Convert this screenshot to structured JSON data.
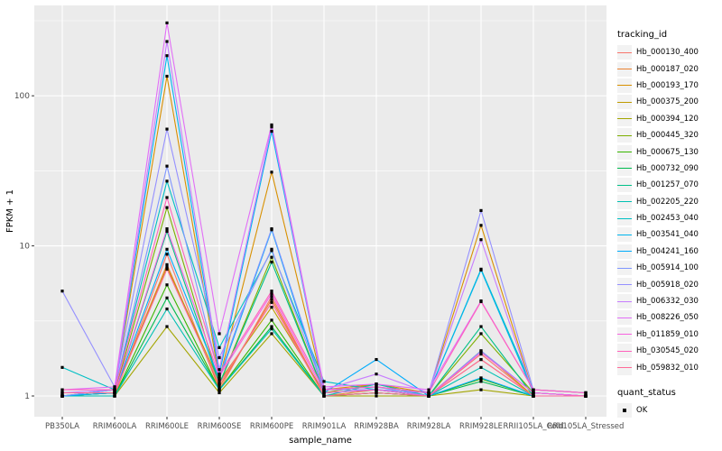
{
  "axes": {
    "x_title": "sample_name",
    "y_title": "FPKM + 1"
  },
  "legend": {
    "tracking_title": "tracking_id",
    "quant_title": "quant_status",
    "quant_ok": "OK"
  },
  "chart_data": {
    "type": "line",
    "xlabel": "sample_name",
    "ylabel": "FPKM + 1",
    "y_scale": "log10",
    "ylim": [
      0.73,
      406
    ],
    "y_ticks": [
      1,
      10,
      100
    ],
    "y_minor": [
      3.162,
      31.62,
      316.2
    ],
    "grid": "on",
    "legend_position": "right",
    "point_marker": "small black square (quant_status OK)",
    "colors": {
      "panel_bg": "#EBEBEB",
      "gridline": "#FFFFFF",
      "tick_text": "#4D4D4D",
      "tick_mark": "#333333",
      "point": "#000000",
      "legend_key_bg": "#F2F2F2"
    },
    "categories": [
      "PB350LA",
      "RRIM600LA",
      "RRIM600LE",
      "RRIM600SE",
      "RRIM600PE",
      "RRIM901LA",
      "RRIM928BA",
      "RRIM928LA",
      "RRIM928LE",
      "RRII105LA_Cold",
      "RRII105LA_Stressed"
    ],
    "series": [
      {
        "name": "Hb_000130_400",
        "color": "#F8766D",
        "values": [
          1.0,
          1.0,
          8.8,
          1.1,
          4.6,
          1.0,
          1.05,
          1.0,
          1.9,
          1.0,
          1.0
        ]
      },
      {
        "name": "Hb_000187_020",
        "color": "#EA8331",
        "values": [
          1.0,
          1.05,
          7.5,
          1.15,
          4.4,
          1.0,
          1.1,
          1.0,
          1.75,
          1.0,
          1.0
        ]
      },
      {
        "name": "Hb_000193_170",
        "color": "#D89000",
        "values": [
          1.0,
          1.1,
          135,
          1.3,
          31,
          1.1,
          1.2,
          1.05,
          13.7,
          1.05,
          1.0
        ]
      },
      {
        "name": "Hb_000375_200",
        "color": "#C09B00",
        "values": [
          1.0,
          1.05,
          7.2,
          1.25,
          3.9,
          1.05,
          1.2,
          1.0,
          2.0,
          1.0,
          1.0
        ]
      },
      {
        "name": "Hb_000394_120",
        "color": "#A3A500",
        "values": [
          1.0,
          1.0,
          2.9,
          1.05,
          2.6,
          1.0,
          1.0,
          1.0,
          1.1,
          1.0,
          1.0
        ]
      },
      {
        "name": "Hb_000445_320",
        "color": "#7CAE00",
        "values": [
          1.0,
          1.05,
          18,
          1.2,
          8.4,
          1.05,
          1.1,
          1.0,
          2.6,
          1.05,
          1.0
        ]
      },
      {
        "name": "Hb_000675_130",
        "color": "#39B600",
        "values": [
          1.0,
          1.0,
          5.5,
          1.1,
          3.2,
          1.0,
          1.05,
          1.0,
          1.3,
          1.0,
          1.0
        ]
      },
      {
        "name": "Hb_000732_090",
        "color": "#00BB4E",
        "values": [
          1.0,
          1.0,
          4.5,
          1.1,
          2.9,
          1.0,
          1.05,
          1.0,
          1.25,
          1.0,
          1.0
        ]
      },
      {
        "name": "Hb_001257_070",
        "color": "#00C087",
        "values": [
          1.0,
          1.05,
          12.5,
          1.2,
          7.8,
          1.05,
          1.1,
          1.0,
          2.9,
          1.0,
          1.0
        ]
      },
      {
        "name": "Hb_002205_220",
        "color": "#00C0B3",
        "values": [
          1.0,
          1.0,
          3.8,
          1.1,
          2.8,
          1.0,
          1.2,
          1.0,
          1.55,
          1.0,
          1.0
        ]
      },
      {
        "name": "Hb_002453_040",
        "color": "#00BFC4",
        "values": [
          1.55,
          1.1,
          27,
          2.1,
          9.3,
          1.25,
          1.1,
          1.05,
          7.0,
          1.1,
          1.05
        ]
      },
      {
        "name": "Hb_003541_040",
        "color": "#00B5EE",
        "values": [
          1.0,
          1.1,
          185,
          1.4,
          58,
          1.1,
          1.15,
          1.05,
          6.9,
          1.05,
          1.0
        ]
      },
      {
        "name": "Hb_004241_160",
        "color": "#00ACFC",
        "values": [
          1.0,
          1.05,
          9.5,
          1.3,
          12.8,
          1.05,
          1.75,
          1.0,
          1.32,
          1.0,
          1.0
        ]
      },
      {
        "name": "Hb_005914_100",
        "color": "#7F96FF",
        "values": [
          1.0,
          1.1,
          34,
          1.35,
          13,
          1.1,
          1.15,
          1.0,
          2.0,
          1.05,
          1.0
        ]
      },
      {
        "name": "Hb_005918_020",
        "color": "#9590FF",
        "values": [
          5.0,
          1.15,
          60,
          1.8,
          9.5,
          1.1,
          1.1,
          1.05,
          17.2,
          1.1,
          1.05
        ]
      },
      {
        "name": "Hb_006332_030",
        "color": "#C77CFF",
        "values": [
          1.05,
          1.1,
          230,
          1.5,
          62,
          1.1,
          1.4,
          1.05,
          11,
          1.05,
          1.0
        ]
      },
      {
        "name": "Hb_008226_050",
        "color": "#E26EF7",
        "values": [
          1.1,
          1.15,
          306,
          2.6,
          64,
          1.15,
          1.2,
          1.1,
          4.3,
          1.1,
          1.05
        ]
      },
      {
        "name": "Hb_011859_010",
        "color": "#F763E0",
        "values": [
          1.05,
          1.05,
          13,
          1.35,
          4.8,
          1.05,
          1.1,
          1.0,
          1.95,
          1.05,
          1.0
        ]
      },
      {
        "name": "Hb_030545_020",
        "color": "#FF62BC",
        "values": [
          1.1,
          1.1,
          21,
          1.4,
          5.0,
          1.1,
          1.15,
          1.05,
          4.25,
          1.1,
          1.05
        ]
      },
      {
        "name": "Hb_059832_010",
        "color": "#FF6A98",
        "values": [
          1.05,
          1.05,
          7.0,
          1.2,
          4.2,
          1.0,
          1.05,
          1.0,
          1.75,
          1.0,
          1.0
        ]
      }
    ]
  }
}
